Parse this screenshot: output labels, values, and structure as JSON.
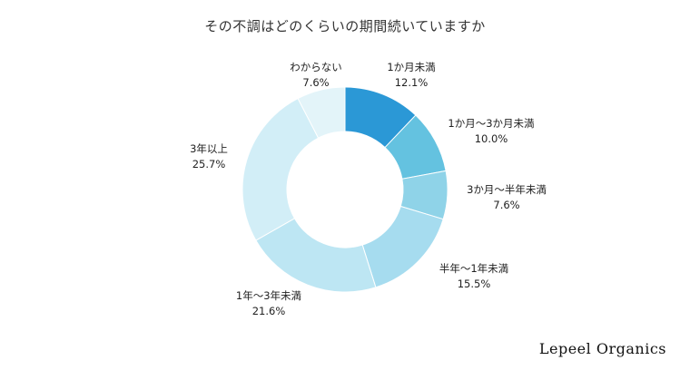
{
  "title": "その不調はどのくらいの期間続いていますか",
  "brand": "Lepeel Organics",
  "chart_data": {
    "type": "pie",
    "title": "その不調はどのくらいの期間続いていますか",
    "donut": true,
    "slices": [
      {
        "label": "1か月未満",
        "value": 12.1,
        "display": "12.1%",
        "color": "#2b98d6"
      },
      {
        "label": "1か月〜3か月未満",
        "value": 10.0,
        "display": "10.0%",
        "color": "#64c2e0"
      },
      {
        "label": "3か月〜半年未満",
        "value": 7.6,
        "display": "7.6%",
        "color": "#8fd3e8"
      },
      {
        "label": "半年〜1年未満",
        "value": 15.5,
        "display": "15.5%",
        "color": "#a6dcef"
      },
      {
        "label": "1年〜3年未満",
        "value": 21.6,
        "display": "21.6%",
        "color": "#bde6f3"
      },
      {
        "label": "3年以上",
        "value": 25.7,
        "display": "25.7%",
        "color": "#d2eef7"
      },
      {
        "label": "わからない",
        "value": 7.6,
        "display": "7.6%",
        "color": "#e3f4f9"
      }
    ]
  }
}
